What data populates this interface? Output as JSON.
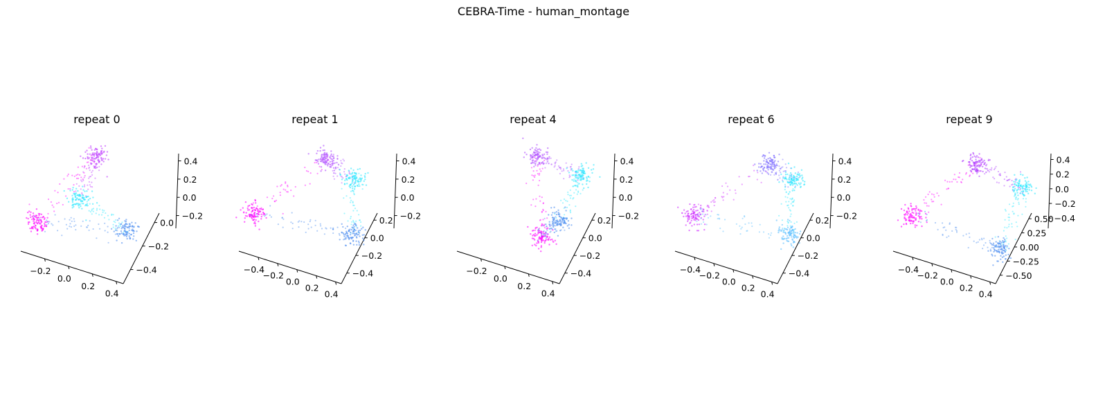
{
  "figure": {
    "title": "CEBRA-Time - human_montage"
  },
  "chart_data": [
    {
      "type": "scatter",
      "title": "repeat 0",
      "xticks": [
        "−0.2",
        "0.0",
        "0.2",
        "0.4"
      ],
      "yticks": [
        "−0.4",
        "−0.2",
        "0.0"
      ],
      "zticks": [
        "−0.2",
        "0.0",
        "0.2",
        "0.4"
      ],
      "clusters": [
        {
          "x": -0.36,
          "y": -0.3,
          "z": -0.2,
          "color": "#ff00ff",
          "label": "magenta"
        },
        {
          "x": -0.05,
          "y": 0.15,
          "z": 0.38,
          "color": "#c040ff",
          "label": "violet"
        },
        {
          "x": -0.12,
          "y": -0.05,
          "z": 0.02,
          "color": "#30e8ff",
          "label": "cyan"
        },
        {
          "x": 0.32,
          "y": -0.3,
          "z": -0.15,
          "color": "#5090f0",
          "label": "blue"
        }
      ]
    },
    {
      "type": "scatter",
      "title": "repeat 1",
      "xticks": [
        "−0.4",
        "−0.2",
        "0.0",
        "0.2",
        "0.4"
      ],
      "yticks": [
        "−0.4",
        "−0.2",
        "0.0",
        "0.2"
      ],
      "zticks": [
        "−0.2",
        "0.0",
        "0.2",
        "0.4"
      ],
      "clusters": [
        {
          "x": -0.4,
          "y": -0.2,
          "z": -0.15,
          "color": "#ff00ff",
          "label": "magenta"
        },
        {
          "x": 0.05,
          "y": 0.1,
          "z": 0.38,
          "color": "#b050ff",
          "label": "violet"
        },
        {
          "x": 0.25,
          "y": 0.15,
          "z": 0.22,
          "color": "#30e8ff",
          "label": "cyan"
        },
        {
          "x": 0.35,
          "y": -0.2,
          "z": -0.2,
          "color": "#5090f0",
          "label": "blue"
        }
      ]
    },
    {
      "type": "scatter",
      "title": "repeat 4",
      "xticks": [
        "−0.2",
        "0.0",
        "0.2",
        "0.4"
      ],
      "yticks": [
        "−0.4",
        "−0.2",
        "0.0",
        "0.2"
      ],
      "zticks": [
        "−0.2",
        "0.0",
        "0.2",
        "0.4"
      ],
      "clusters": [
        {
          "x": 0.1,
          "y": -0.1,
          "z": -0.3,
          "color": "#ff00ff",
          "label": "magenta"
        },
        {
          "x": 0.0,
          "y": 0.1,
          "z": 0.4,
          "color": "#b050ff",
          "label": "violet"
        },
        {
          "x": 0.3,
          "y": 0.2,
          "z": 0.25,
          "color": "#30e8ff",
          "label": "cyan"
        },
        {
          "x": 0.25,
          "y": -0.15,
          "z": -0.1,
          "color": "#5090f0",
          "label": "blue"
        }
      ]
    },
    {
      "type": "scatter",
      "title": "repeat 6",
      "xticks": [
        "−0.4",
        "−0.2",
        "0.0",
        "0.2",
        "0.4"
      ],
      "yticks": [
        "−0.4",
        "−0.2",
        "0.0",
        "0.2"
      ],
      "zticks": [
        "−0.2",
        "0.0",
        "0.2",
        "0.4"
      ],
      "clusters": [
        {
          "x": -0.4,
          "y": -0.1,
          "z": -0.2,
          "color": "#d030ff",
          "label": "magenta"
        },
        {
          "x": 0.1,
          "y": 0.1,
          "z": 0.35,
          "color": "#8070ff",
          "label": "violet"
        },
        {
          "x": 0.25,
          "y": 0.2,
          "z": 0.2,
          "color": "#30e8ff",
          "label": "cyan"
        },
        {
          "x": 0.35,
          "y": -0.2,
          "z": -0.2,
          "color": "#60c0ff",
          "label": "light-blue"
        }
      ]
    },
    {
      "type": "scatter",
      "title": "repeat 9",
      "xticks": [
        "−0.4",
        "−0.2",
        "0.0",
        "0.2",
        "0.4"
      ],
      "yticks": [
        "−0.50",
        "−0.25",
        "0.00",
        "0.25",
        "0.50"
      ],
      "zticks": [
        "−0.4",
        "−0.2",
        "0.0",
        "0.2",
        "0.4"
      ],
      "clusters": [
        {
          "x": -0.4,
          "y": -0.1,
          "z": -0.2,
          "color": "#ff00ff",
          "label": "magenta"
        },
        {
          "x": 0.0,
          "y": 0.2,
          "z": 0.3,
          "color": "#b040ff",
          "label": "violet"
        },
        {
          "x": 0.3,
          "y": 0.3,
          "z": 0.1,
          "color": "#30e8ff",
          "label": "cyan"
        },
        {
          "x": 0.35,
          "y": -0.35,
          "z": -0.3,
          "color": "#5090f0",
          "label": "blue"
        }
      ]
    }
  ]
}
